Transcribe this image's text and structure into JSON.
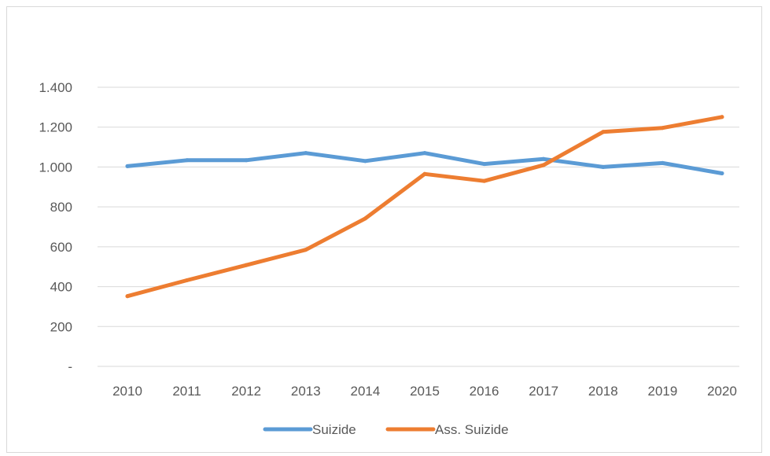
{
  "chart_data": {
    "type": "line",
    "title": "",
    "xlabel": "",
    "ylabel": "",
    "categories": [
      "2010",
      "2011",
      "2012",
      "2013",
      "2014",
      "2015",
      "2016",
      "2017",
      "2018",
      "2019",
      "2020"
    ],
    "ylim": [
      0,
      1400
    ],
    "ytick_values": [
      0,
      200,
      400,
      600,
      800,
      1000,
      1200,
      1400
    ],
    "ytick_labels": [
      "-",
      "200",
      "400",
      "600",
      "800",
      "1.000",
      "1.200",
      "1.400"
    ],
    "grid": true,
    "legend_position": "bottom",
    "series": [
      {
        "name": "Suizide",
        "color": "#5b9bd5",
        "values": [
          1004,
          1034,
          1034,
          1070,
          1030,
          1070,
          1015,
          1040,
          1000,
          1020,
          968
        ]
      },
      {
        "name": "Ass. Suizide",
        "color": "#ed7d31",
        "values": [
          352,
          432,
          508,
          585,
          742,
          965,
          930,
          1010,
          1176,
          1196,
          1251
        ]
      }
    ]
  }
}
